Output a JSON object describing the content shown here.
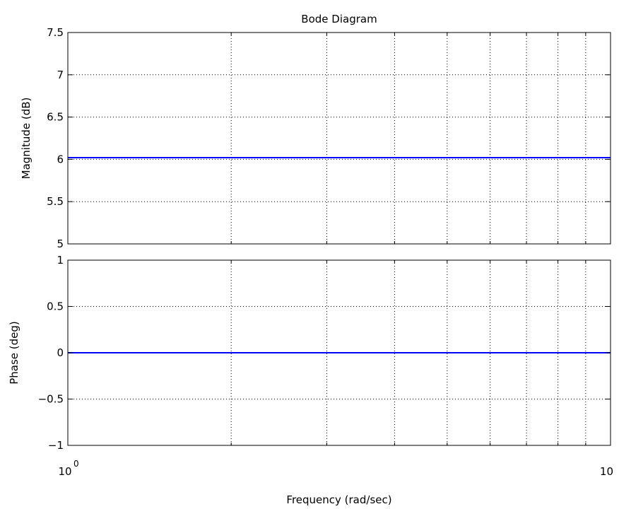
{
  "chart_data": {
    "type": "line",
    "title": "Bode Diagram",
    "xlabel": "Frequency  (rad/sec)",
    "xscale": "log",
    "xlim": [
      1,
      10
    ],
    "x_tick_labels": [
      {
        "base": "10",
        "exponent": "0"
      },
      {
        "base": "10",
        "exponent": ""
      }
    ],
    "x_grid": [
      2,
      3,
      4,
      5,
      6,
      7,
      8,
      9
    ],
    "grid": true,
    "line_color": "#0000ff",
    "panels": [
      {
        "id": "magnitude",
        "ylabel": "Magnitude (dB)",
        "ylim": [
          5,
          7.5
        ],
        "yticks": [
          5,
          5.5,
          6,
          6.5,
          7,
          7.5
        ],
        "ytick_labels": [
          "5",
          "5.5",
          "6",
          "6.5",
          "7",
          "7.5"
        ],
        "series": [
          {
            "x": [
              1,
              10
            ],
            "y": [
              6.02,
              6.02
            ]
          }
        ]
      },
      {
        "id": "phase",
        "ylabel": "Phase (deg)",
        "ylim": [
          -1,
          1
        ],
        "yticks": [
          -1,
          -0.5,
          0,
          0.5,
          1
        ],
        "ytick_labels": [
          "−1",
          "−0.5",
          "0",
          "0.5",
          "1"
        ],
        "series": [
          {
            "x": [
              1,
              10
            ],
            "y": [
              0,
              0
            ]
          }
        ]
      }
    ]
  }
}
